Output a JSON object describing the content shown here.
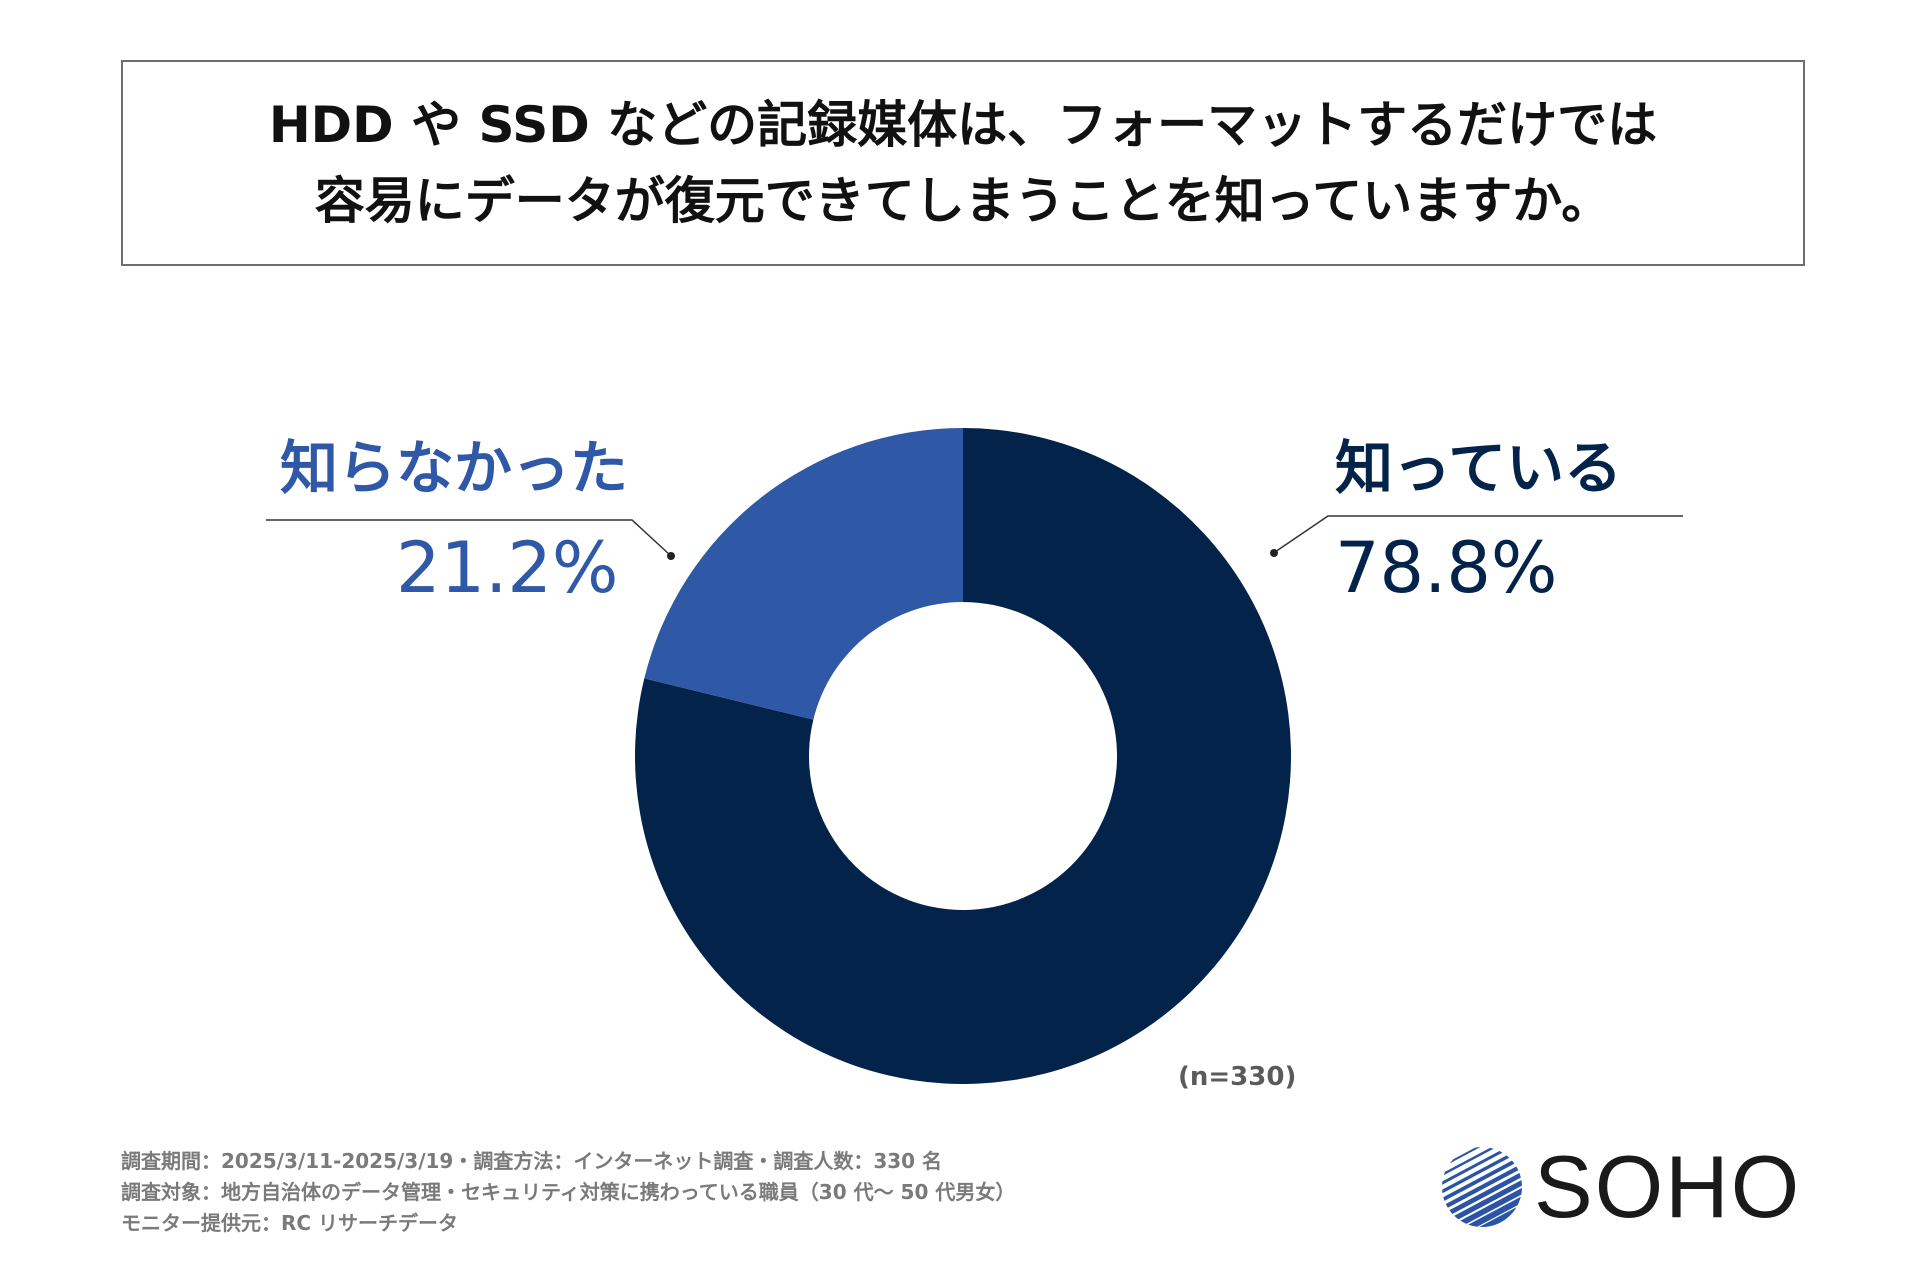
{
  "title": {
    "line1": "HDD や SSD などの記録媒体は、フォーマットするだけでは",
    "line2": "容易にデータが復元できてしまうことを知っていますか。"
  },
  "chart_data": {
    "type": "pie",
    "donut": true,
    "categories": [
      "知っている",
      "知らなかった"
    ],
    "values": [
      78.8,
      21.2
    ],
    "value_labels": [
      "78.8%",
      "21.2%"
    ],
    "colors": [
      "#03234a",
      "#2f58a6"
    ],
    "sample_note": "(n=330)"
  },
  "footnotes": [
    "調査期間：2025/3/11-2025/3/19・調査方法：インターネット調査・調査人数：330 名",
    "調査対象：地方自治体のデータ管理・セキュリティ対策に携わっている職員（30 代～ 50 代男女）",
    "モニター提供元：RC リサーチデータ"
  ],
  "logo": {
    "text": "SOHO",
    "icon": "striped-globe-icon",
    "color": "#2b54a4"
  }
}
